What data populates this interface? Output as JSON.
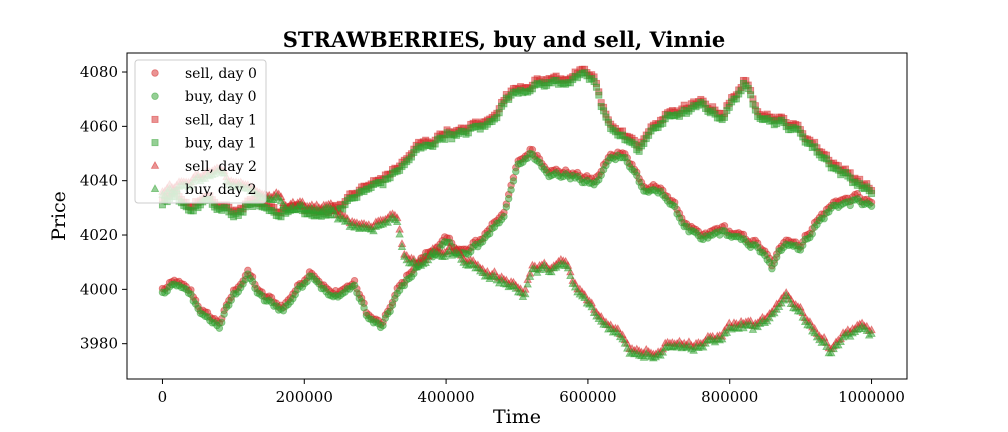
{
  "chart_data": {
    "type": "scatter",
    "title": "STRAWBERRIES, buy and sell, Vinnie",
    "xlabel": "Time",
    "ylabel": "Price",
    "xlim": [
      -50000,
      1050000
    ],
    "ylim": [
      3967,
      4087
    ],
    "xticks": [
      0,
      200000,
      400000,
      600000,
      800000,
      1000000
    ],
    "xtick_labels": [
      "0",
      "200000",
      "400000",
      "600000",
      "800000",
      "1000000"
    ],
    "yticks": [
      3980,
      4000,
      4020,
      4040,
      4060,
      4080
    ],
    "ytick_labels": [
      "3980",
      "4000",
      "4020",
      "4040",
      "4060",
      "4080"
    ],
    "grid": false,
    "legend_position": "top-left",
    "colors": {
      "sell": "#d62728",
      "buy": "#2ca02c"
    },
    "days": [
      {
        "day": 0,
        "marker": "circle",
        "path": [
          [
            0,
            3999
          ],
          [
            20000,
            4002
          ],
          [
            40000,
            3998
          ],
          [
            60000,
            3990
          ],
          [
            80000,
            3987
          ],
          [
            100000,
            3998
          ],
          [
            120000,
            4006
          ],
          [
            140000,
            3997
          ],
          [
            170000,
            3993
          ],
          [
            190000,
            4000
          ],
          [
            210000,
            4007
          ],
          [
            240000,
            3997
          ],
          [
            270000,
            4002
          ],
          [
            290000,
            3990
          ],
          [
            310000,
            3986
          ],
          [
            330000,
            3998
          ],
          [
            350000,
            4006
          ],
          [
            370000,
            4012
          ],
          [
            400000,
            4017
          ],
          [
            430000,
            4013
          ],
          [
            450000,
            4018
          ],
          [
            480000,
            4028
          ],
          [
            490000,
            4035
          ],
          [
            500000,
            4045
          ],
          [
            520000,
            4051
          ],
          [
            550000,
            4043
          ],
          [
            580000,
            4042
          ],
          [
            610000,
            4039
          ],
          [
            630000,
            4048
          ],
          [
            650000,
            4051
          ],
          [
            660000,
            4046
          ],
          [
            680000,
            4037
          ],
          [
            710000,
            4035
          ],
          [
            740000,
            4023
          ],
          [
            760000,
            4018
          ],
          [
            790000,
            4022
          ],
          [
            810000,
            4019
          ],
          [
            840000,
            4016
          ],
          [
            860000,
            4008
          ],
          [
            880000,
            4019
          ],
          [
            900000,
            4016
          ],
          [
            920000,
            4024
          ],
          [
            950000,
            4032
          ],
          [
            980000,
            4033
          ],
          [
            1000000,
            4031
          ]
        ],
        "series": [
          {
            "name": "sell, day 0",
            "side": "sell",
            "offset": 0.7,
            "values": []
          },
          {
            "name": "buy, day 0",
            "side": "buy",
            "offset": -0.7,
            "values": []
          }
        ]
      },
      {
        "day": 1,
        "marker": "square",
        "path": [
          [
            0,
            4031
          ],
          [
            20000,
            4034
          ],
          [
            40000,
            4030
          ],
          [
            60000,
            4033
          ],
          [
            80000,
            4030
          ],
          [
            100000,
            4028
          ],
          [
            130000,
            4032
          ],
          [
            160000,
            4029
          ],
          [
            190000,
            4030
          ],
          [
            220000,
            4027
          ],
          [
            250000,
            4031
          ],
          [
            280000,
            4036
          ],
          [
            310000,
            4040
          ],
          [
            340000,
            4046
          ],
          [
            360000,
            4052
          ],
          [
            380000,
            4054
          ],
          [
            400000,
            4058
          ],
          [
            420000,
            4057
          ],
          [
            440000,
            4060
          ],
          [
            460000,
            4061
          ],
          [
            480000,
            4069
          ],
          [
            500000,
            4074
          ],
          [
            530000,
            4076
          ],
          [
            560000,
            4077
          ],
          [
            590000,
            4079
          ],
          [
            610000,
            4077
          ],
          [
            620000,
            4066
          ],
          [
            640000,
            4058
          ],
          [
            660000,
            4055
          ],
          [
            670000,
            4051
          ],
          [
            680000,
            4056
          ],
          [
            700000,
            4061
          ],
          [
            720000,
            4065
          ],
          [
            740000,
            4066
          ],
          [
            760000,
            4068
          ],
          [
            790000,
            4064
          ],
          [
            820000,
            4076
          ],
          [
            840000,
            4066
          ],
          [
            860000,
            4063
          ],
          [
            880000,
            4061
          ],
          [
            900000,
            4058
          ],
          [
            930000,
            4050
          ],
          [
            960000,
            4043
          ],
          [
            980000,
            4040
          ],
          [
            1000000,
            4036
          ]
        ],
        "series": [
          {
            "name": "sell, day 1",
            "side": "sell",
            "offset": 0.7,
            "values": []
          },
          {
            "name": "buy, day 1",
            "side": "buy",
            "offset": -0.7,
            "values": []
          }
        ]
      },
      {
        "day": 2,
        "marker": "triangle",
        "path": [
          [
            0,
            4035
          ],
          [
            20000,
            4038
          ],
          [
            40000,
            4039
          ],
          [
            60000,
            4041
          ],
          [
            80000,
            4044
          ],
          [
            100000,
            4038
          ],
          [
            120000,
            4039
          ],
          [
            140000,
            4033
          ],
          [
            160000,
            4034
          ],
          [
            180000,
            4030
          ],
          [
            210000,
            4030
          ],
          [
            240000,
            4029
          ],
          [
            270000,
            4024
          ],
          [
            290000,
            4023
          ],
          [
            310000,
            4025
          ],
          [
            330000,
            4027
          ],
          [
            340000,
            4014
          ],
          [
            360000,
            4008
          ],
          [
            380000,
            4013
          ],
          [
            410000,
            4014
          ],
          [
            440000,
            4009
          ],
          [
            460000,
            4005
          ],
          [
            490000,
            4003
          ],
          [
            510000,
            3998
          ],
          [
            520000,
            4007
          ],
          [
            550000,
            4008
          ],
          [
            570000,
            4009
          ],
          [
            580000,
            4001
          ],
          [
            600000,
            3995
          ],
          [
            620000,
            3988
          ],
          [
            640000,
            3985
          ],
          [
            660000,
            3978
          ],
          [
            680000,
            3977
          ],
          [
            700000,
            3977
          ],
          [
            720000,
            3981
          ],
          [
            740000,
            3979
          ],
          [
            760000,
            3980
          ],
          [
            780000,
            3981
          ],
          [
            800000,
            3986
          ],
          [
            820000,
            3987
          ],
          [
            840000,
            3986
          ],
          [
            860000,
            3990
          ],
          [
            870000,
            3993
          ],
          [
            880000,
            3998
          ],
          [
            900000,
            3992
          ],
          [
            920000,
            3985
          ],
          [
            940000,
            3978
          ],
          [
            960000,
            3983
          ],
          [
            980000,
            3986
          ],
          [
            1000000,
            3984
          ]
        ],
        "series": [
          {
            "name": "sell, day 2",
            "side": "sell",
            "offset": 0.7,
            "values": []
          },
          {
            "name": "buy, day 2",
            "side": "buy",
            "offset": -0.7,
            "values": []
          }
        ]
      }
    ]
  }
}
